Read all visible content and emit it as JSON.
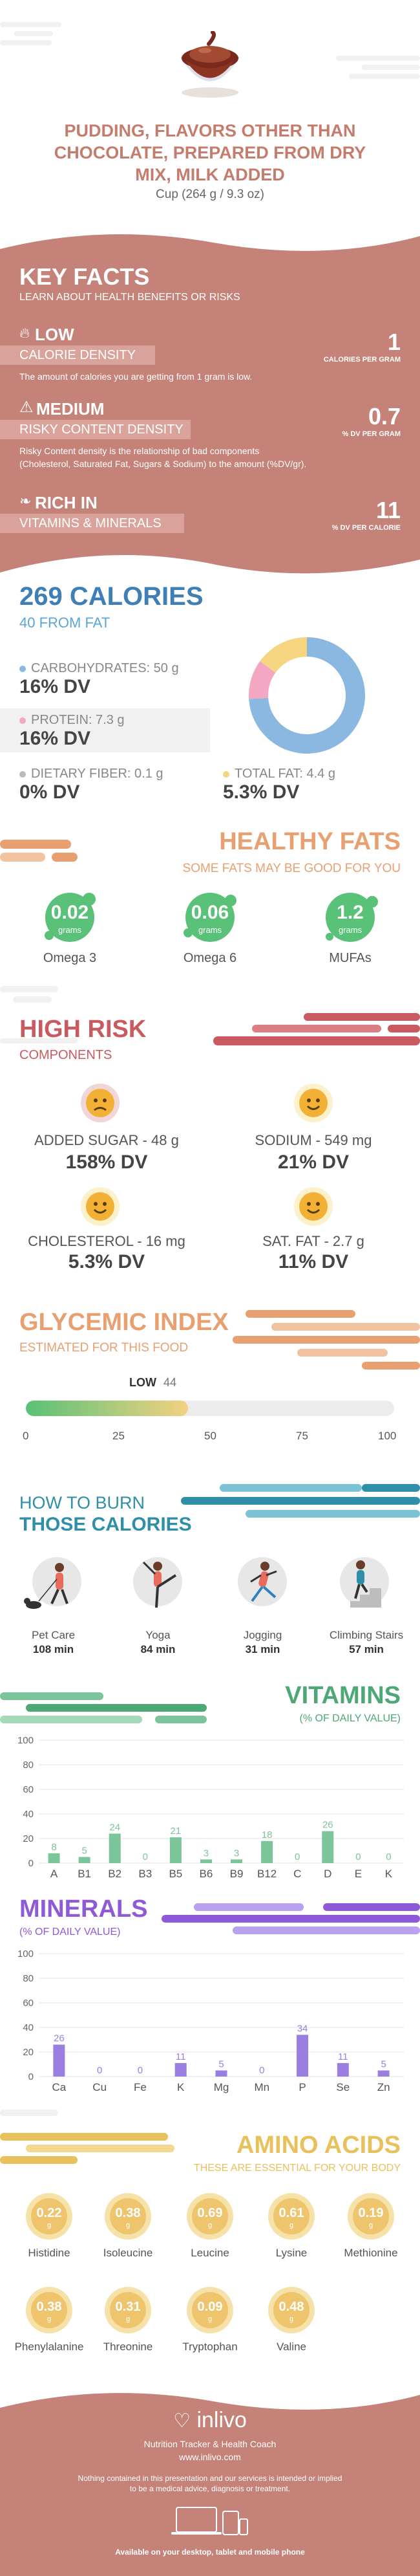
{
  "header": {
    "title_lines": [
      "PUDDING, FLAVORS OTHER THAN",
      "CHOCOLATE, PREPARED FROM DRY",
      "MIX, MILK ADDED"
    ],
    "serving": "Cup (264 g / 9.3 oz)"
  },
  "key_facts": {
    "title": "KEY FACTS",
    "subtitle": "LEARN ABOUT HEALTH BENEFITS OR RISKS",
    "items": [
      {
        "level": "LOW",
        "name": "CALORIE DENSITY",
        "value": "1",
        "unit": "CALORIES PER GRAM",
        "desc1": "The amount of calories you are getting from 1 gram is low.",
        "desc2": ""
      },
      {
        "level": "MEDIUM",
        "name": "RISKY CONTENT DENSITY",
        "value": "0.7",
        "unit": "% DV PER GRAM",
        "desc1": "Risky Content density is the relationship of bad components",
        "desc2": "(Cholesterol, Saturated Fat, Sugars & Sodium) to the amount (%DV/gr)."
      },
      {
        "level": "RICH IN",
        "name": "VITAMINS & MINERALS",
        "value": "11",
        "unit": "% DV PER CALORIE",
        "desc1": "",
        "desc2": ""
      }
    ]
  },
  "calories": {
    "total": "269 CALORIES",
    "from_fat": "40 FROM FAT",
    "carbs_label": "CARBOHYDRATES: 50 g",
    "carbs_dv": "16% DV",
    "protein_label": "PROTEIN: 7.3 g",
    "protein_dv": "16% DV",
    "fiber_label": "DIETARY FIBER: 0.1 g",
    "fiber_dv": "0% DV",
    "fat_label": "TOTAL FAT: 4.4 g",
    "fat_dv": "5.3% DV",
    "donut": [
      {
        "name": "carbohydrates",
        "value": 74,
        "color": "#8ab8e0"
      },
      {
        "name": "protein",
        "value": 11,
        "color": "#f4a7c3"
      },
      {
        "name": "fat",
        "value": 15,
        "color": "#f5d580"
      }
    ]
  },
  "healthy_fats": {
    "title": "HEALTHY FATS",
    "subtitle": "SOME FATS MAY BE GOOD FOR YOU",
    "items": [
      {
        "value": "0.02",
        "unit": "grams",
        "name": "Omega 3"
      },
      {
        "value": "0.06",
        "unit": "grams",
        "name": "Omega 6"
      },
      {
        "value": "1.2",
        "unit": "grams",
        "name": "MUFAs"
      }
    ]
  },
  "high_risk": {
    "title": "HIGH RISK",
    "subtitle": "COMPONENTS",
    "items": [
      {
        "label": "ADDED SUGAR - 48 g",
        "dv": "158% DV",
        "face": "sad-face-icon"
      },
      {
        "label": "SODIUM - 549 mg",
        "dv": "21% DV",
        "face": "happy-face-icon"
      },
      {
        "label": "CHOLESTEROL - 16 mg",
        "dv": "5.3% DV",
        "face": "happy-face-icon"
      },
      {
        "label": "SAT. FAT - 2.7 g",
        "dv": "11% DV",
        "face": "happy-face-icon"
      }
    ]
  },
  "glycemic": {
    "title": "GLYCEMIC INDEX",
    "subtitle": "ESTIMATED FOR THIS FOOD",
    "level": "LOW",
    "value": 44,
    "value_text": "44",
    "ticks": [
      "0",
      "25",
      "50",
      "75",
      "100"
    ]
  },
  "burn": {
    "title1": "HOW TO BURN",
    "title2": "THOSE CALORIES",
    "items": [
      {
        "name": "Pet Care",
        "minutes": "108 min"
      },
      {
        "name": "Yoga",
        "minutes": "84 min"
      },
      {
        "name": "Jogging",
        "minutes": "31 min"
      },
      {
        "name": "Climbing Stairs",
        "minutes": "57 min"
      }
    ]
  },
  "chart_data": [
    {
      "type": "bar",
      "title": "VITAMINS",
      "subtitle": "(% OF DAILY VALUE)",
      "categories": [
        "A",
        "B1",
        "B2",
        "B3",
        "B5",
        "B6",
        "B9",
        "B12",
        "C",
        "D",
        "E",
        "K"
      ],
      "values": [
        8,
        5,
        24,
        0,
        21,
        3,
        3,
        18,
        0,
        26,
        0,
        0
      ],
      "ylim": [
        0,
        100
      ],
      "yticks": [
        "0",
        "20",
        "40",
        "60",
        "80",
        "100"
      ],
      "color": "#7cc49a"
    },
    {
      "type": "bar",
      "title": "MINERALS",
      "subtitle": "(% OF DAILY VALUE)",
      "categories": [
        "Ca",
        "Cu",
        "Fe",
        "K",
        "Mg",
        "Mn",
        "P",
        "Se",
        "Zn"
      ],
      "values": [
        26,
        0,
        0,
        11,
        5,
        0,
        34,
        11,
        5
      ],
      "ylim": [
        0,
        100
      ],
      "yticks": [
        "0",
        "20",
        "40",
        "60",
        "80",
        "100"
      ],
      "color": "#9b7fe0"
    }
  ],
  "amino": {
    "title": "AMINO ACIDS",
    "subtitle": "THESE ARE ESSENTIAL FOR YOUR BODY",
    "unit": "g",
    "items": [
      {
        "value": "0.22",
        "name": "Histidine"
      },
      {
        "value": "0.38",
        "name": "Isoleucine"
      },
      {
        "value": "0.69",
        "name": "Leucine"
      },
      {
        "value": "0.61",
        "name": "Lysine"
      },
      {
        "value": "0.19",
        "name": "Methionine"
      },
      {
        "value": "0.38",
        "name": "Phenylalanine"
      },
      {
        "value": "0.31",
        "name": "Threonine"
      },
      {
        "value": "0.09",
        "name": "Tryptophan"
      },
      {
        "value": "0.48",
        "name": "Valine"
      }
    ]
  },
  "footer": {
    "brand": "inlivo",
    "tagline": "Nutrition Tracker & Health Coach",
    "url": "www.inlivo.com",
    "disclaimer1": "Nothing contained in this presentation and our services is intended or implied",
    "disclaimer2": "to be a medical advice, diagnosis or treatment.",
    "available": "Available on your desktop, tablet and mobile phone"
  },
  "colors": {
    "rose": "#c48279",
    "rose_dark": "#b56f66",
    "blue": "#3e7fb5",
    "orange": "#e8a070",
    "green": "#59c178",
    "red": "#c95a5f",
    "teal": "#2f8fa8",
    "purple": "#8e5ad8",
    "gold": "#e9c15b"
  }
}
